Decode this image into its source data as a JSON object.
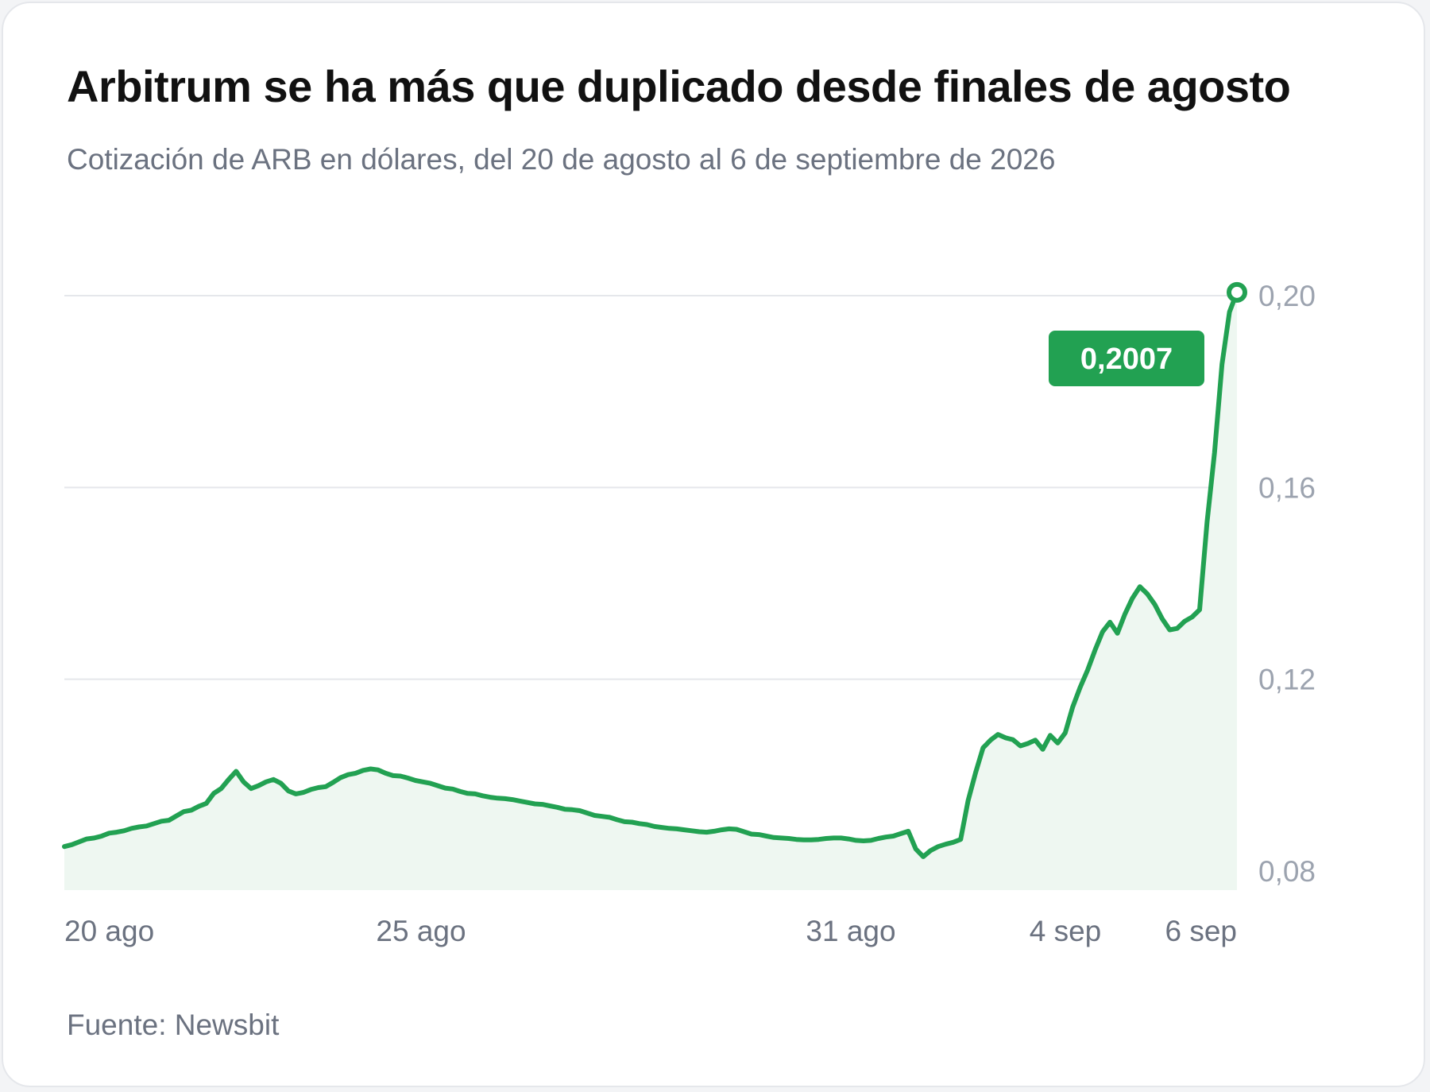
{
  "title": "Arbitrum se ha más que duplicado desde finales de agosto",
  "subtitle": "Cotización de ARB en dólares, del 20 de agosto al 6 de septiembre de 2026",
  "source": "Fuente: Newsbit",
  "colors": {
    "line": "#22a152",
    "area": "#eef7f1",
    "grid": "#e5e7eb",
    "callout": "#22a152"
  },
  "chart_data": {
    "type": "area",
    "series": [
      {
        "values": [
          0.0851,
          0.0855,
          0.0861,
          0.0867,
          0.0869,
          0.0873,
          0.0879,
          0.0881,
          0.0884,
          0.0889,
          0.0892,
          0.0894,
          0.0899,
          0.0904,
          0.0906,
          0.0915,
          0.0924,
          0.0927,
          0.0935,
          0.0941,
          0.0962,
          0.0972,
          0.0991,
          0.1008,
          0.0986,
          0.0972,
          0.0978,
          0.0986,
          0.0991,
          0.0983,
          0.0967,
          0.0961,
          0.0964,
          0.097,
          0.0974,
          0.0976,
          0.0985,
          0.0995,
          0.1001,
          0.1004,
          0.101,
          0.1013,
          0.1011,
          0.1004,
          0.0999,
          0.0998,
          0.0994,
          0.0989,
          0.0986,
          0.0983,
          0.0978,
          0.0973,
          0.0971,
          0.0966,
          0.0962,
          0.0961,
          0.0957,
          0.0954,
          0.0952,
          0.0951,
          0.0949,
          0.0946,
          0.0943,
          0.094,
          0.0939,
          0.0936,
          0.0933,
          0.0929,
          0.0928,
          0.0926,
          0.0921,
          0.0916,
          0.0914,
          0.0912,
          0.0907,
          0.0903,
          0.0902,
          0.0899,
          0.0897,
          0.0893,
          0.0891,
          0.0889,
          0.0888,
          0.0886,
          0.0884,
          0.0882,
          0.0881,
          0.0883,
          0.0886,
          0.0888,
          0.0887,
          0.0882,
          0.0877,
          0.0876,
          0.0873,
          0.087,
          0.0869,
          0.0868,
          0.0866,
          0.0865,
          0.0865,
          0.0866,
          0.0868,
          0.0869,
          0.0869,
          0.0867,
          0.0864,
          0.0863,
          0.0864,
          0.0868,
          0.0871,
          0.0873,
          0.0878,
          0.0883,
          0.0846,
          0.083,
          0.0843,
          0.0851,
          0.0856,
          0.086,
          0.0866,
          0.0947,
          0.1005,
          0.1057,
          0.1073,
          0.1085,
          0.1078,
          0.1074,
          0.1061,
          0.1066,
          0.1073,
          0.1054,
          0.1083,
          0.1067,
          0.1088,
          0.1142,
          0.1183,
          0.1219,
          0.1261,
          0.1299,
          0.1319,
          0.1296,
          0.1336,
          0.1369,
          0.1393,
          0.1378,
          0.1356,
          0.1326,
          0.1303,
          0.1306,
          0.1321,
          0.133,
          0.1345,
          0.1528,
          0.1673,
          0.1857,
          0.1966,
          0.2007
        ]
      }
    ],
    "x_ticks": [
      "20 ago",
      "25 ago",
      "31 ago",
      "4 sep",
      "6 sep"
    ],
    "y_ticks": [
      "0,08",
      "0,12",
      "0,16",
      "0,20"
    ],
    "y_tick_values": [
      0.08,
      0.12,
      0.16,
      0.2
    ],
    "ylim": [
      0.076,
      0.205
    ],
    "annotation": {
      "label": "0,2007",
      "value": 0.2007
    },
    "grid": true
  }
}
